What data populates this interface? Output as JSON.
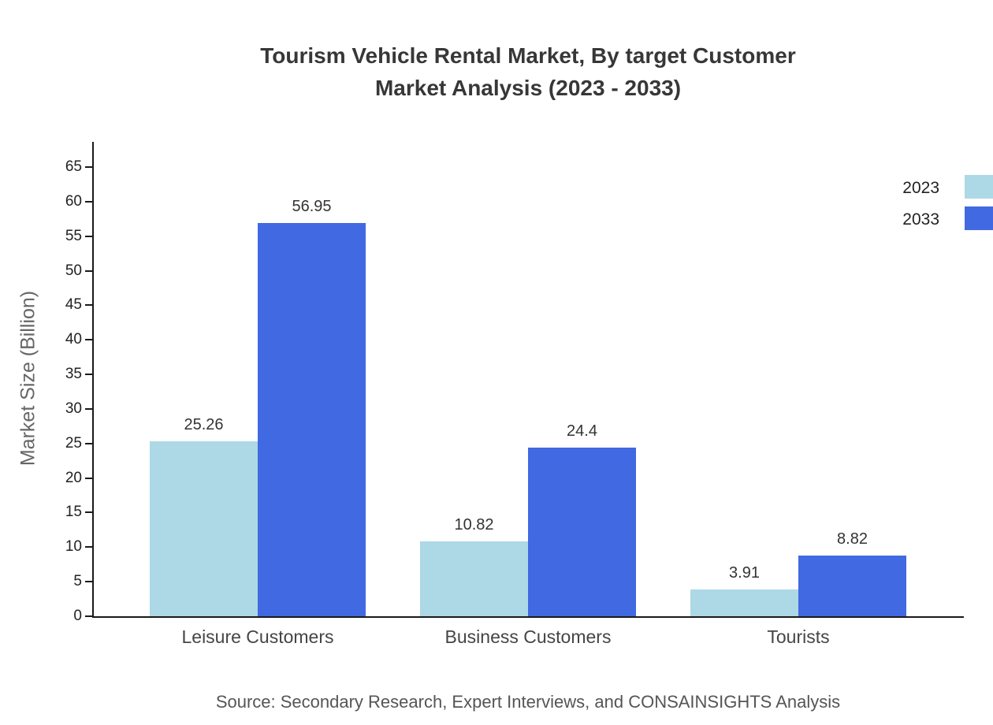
{
  "title": {
    "line1": "Tourism Vehicle Rental Market, By target Customer",
    "line2": "Market Analysis (2023 - 2033)"
  },
  "source": "Source: Secondary Research, Expert Interviews, and CONSAINSIGHTS Analysis",
  "colors": {
    "series_2023": "#ADD8E6",
    "series_2033": "#4169E1",
    "axis": "#1a1a1a",
    "title_text": "#373737"
  },
  "chart_data": {
    "type": "bar",
    "title": "Tourism Vehicle Rental Market, By target Customer Market Analysis (2023 - 2033)",
    "categories": [
      "Leisure Customers",
      "Business Customers",
      "Tourists"
    ],
    "series": [
      {
        "name": "2023",
        "color": "#ADD8E6",
        "values": [
          25.26,
          10.82,
          3.91
        ]
      },
      {
        "name": "2033",
        "color": "#4169E1",
        "values": [
          56.95,
          24.4,
          8.82
        ]
      }
    ],
    "value_labels": {
      "2023": [
        "25.26",
        "10.82",
        "3.91"
      ],
      "2033": [
        "56.95",
        "24.4",
        "8.82"
      ]
    },
    "xlabel": "",
    "ylabel": "Market Size (Billion)",
    "ylim": [
      0,
      65
    ],
    "yticks": [
      0,
      5,
      10,
      15,
      20,
      25,
      30,
      35,
      40,
      45,
      50,
      55,
      60,
      65
    ],
    "grid": false,
    "legend_position": "top-right"
  }
}
